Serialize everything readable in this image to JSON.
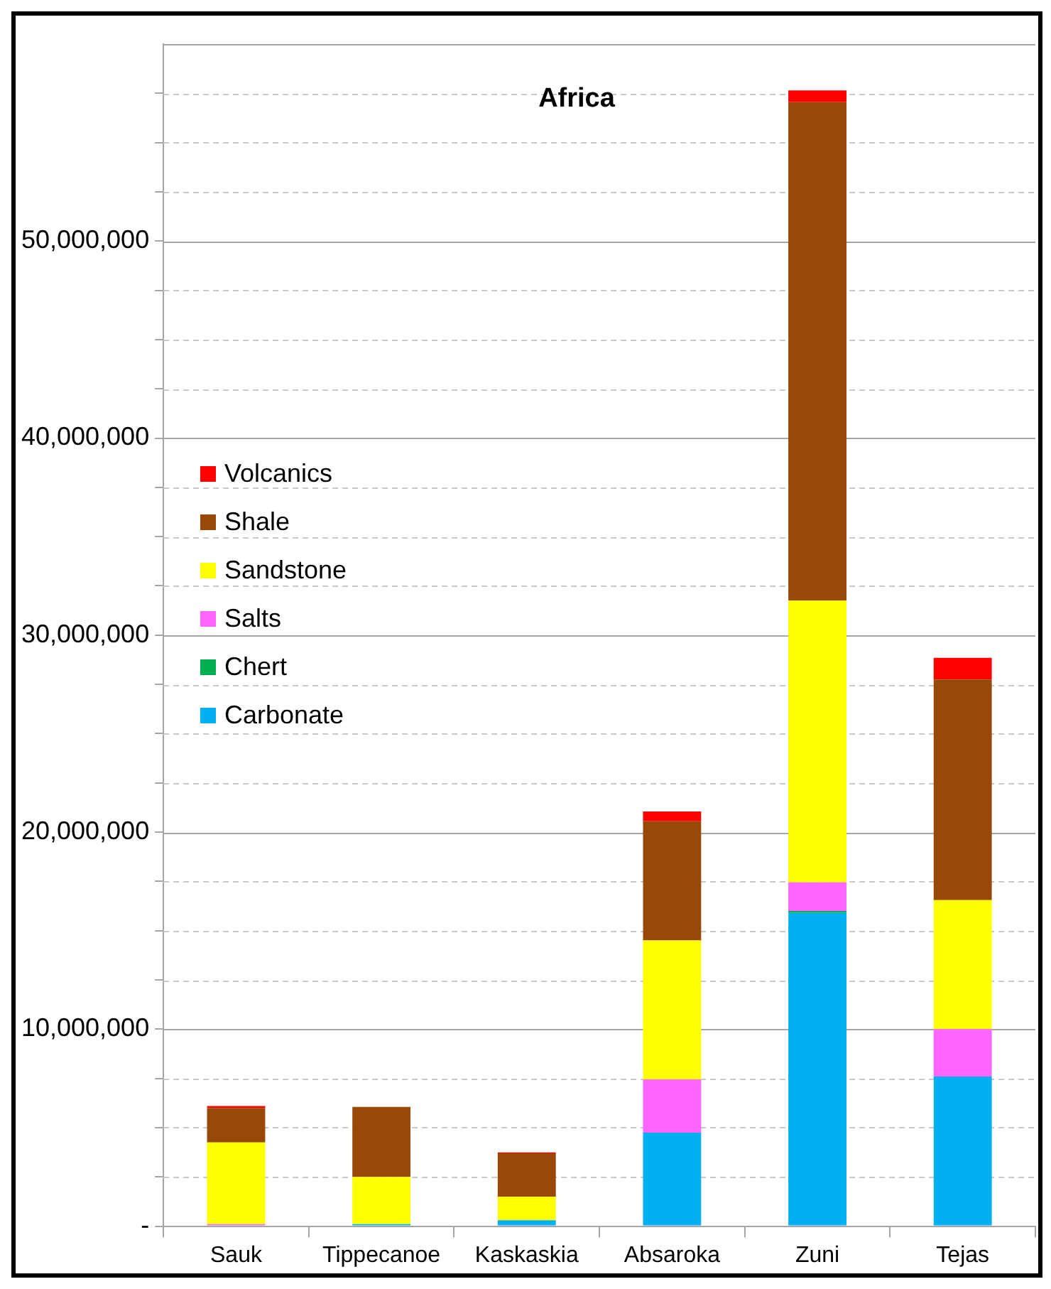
{
  "chart_data": {
    "type": "bar",
    "title": "Africa",
    "stacked": true,
    "categories": [
      "Sauk",
      "Tippecanoe",
      "Kaskaskia",
      "Absaroka",
      "Zuni",
      "Tejas"
    ],
    "series": [
      {
        "name": "Carbonate",
        "color": "#00b0f0",
        "values": [
          0,
          100000,
          300000,
          4750000,
          15900000,
          7600000
        ]
      },
      {
        "name": "Chert",
        "color": "#00b050",
        "values": [
          0,
          0,
          0,
          0,
          100000,
          0
        ]
      },
      {
        "name": "Salts",
        "color": "#ff66ff",
        "values": [
          100000,
          0,
          0,
          2700000,
          1450000,
          2400000
        ]
      },
      {
        "name": "Sandstone",
        "color": "#ffff00",
        "values": [
          4150000,
          2400000,
          1200000,
          7050000,
          14300000,
          6550000
        ]
      },
      {
        "name": "Shale",
        "color": "#984807",
        "values": [
          1750000,
          3550000,
          2200000,
          6050000,
          25300000,
          11200000
        ]
      },
      {
        "name": "Volcanics",
        "color": "#ff0000",
        "values": [
          100000,
          0,
          50000,
          500000,
          600000,
          1100000
        ]
      }
    ],
    "ylim": [
      0,
      60000000
    ],
    "yticks": [
      {
        "value": 0,
        "label": "-"
      },
      {
        "value": 2500000,
        "label": null
      },
      {
        "value": 5000000,
        "label": null
      },
      {
        "value": 7500000,
        "label": null
      },
      {
        "value": 10000000,
        "label": "10,000,000"
      },
      {
        "value": 12500000,
        "label": null
      },
      {
        "value": 15000000,
        "label": null
      },
      {
        "value": 17500000,
        "label": null
      },
      {
        "value": 20000000,
        "label": "20,000,000"
      },
      {
        "value": 22500000,
        "label": null
      },
      {
        "value": 25000000,
        "label": null
      },
      {
        "value": 27500000,
        "label": null
      },
      {
        "value": 30000000,
        "label": "30,000,000"
      },
      {
        "value": 32500000,
        "label": null
      },
      {
        "value": 35000000,
        "label": null
      },
      {
        "value": 37500000,
        "label": null
      },
      {
        "value": 40000000,
        "label": "40,000,000"
      },
      {
        "value": 42500000,
        "label": null
      },
      {
        "value": 45000000,
        "label": null
      },
      {
        "value": 47500000,
        "label": null
      },
      {
        "value": 50000000,
        "label": "50,000,000"
      },
      {
        "value": 52500000,
        "label": null
      },
      {
        "value": 55000000,
        "label": null
      },
      {
        "value": 57500000,
        "label": null
      }
    ],
    "grid": "y",
    "legend": "left"
  }
}
